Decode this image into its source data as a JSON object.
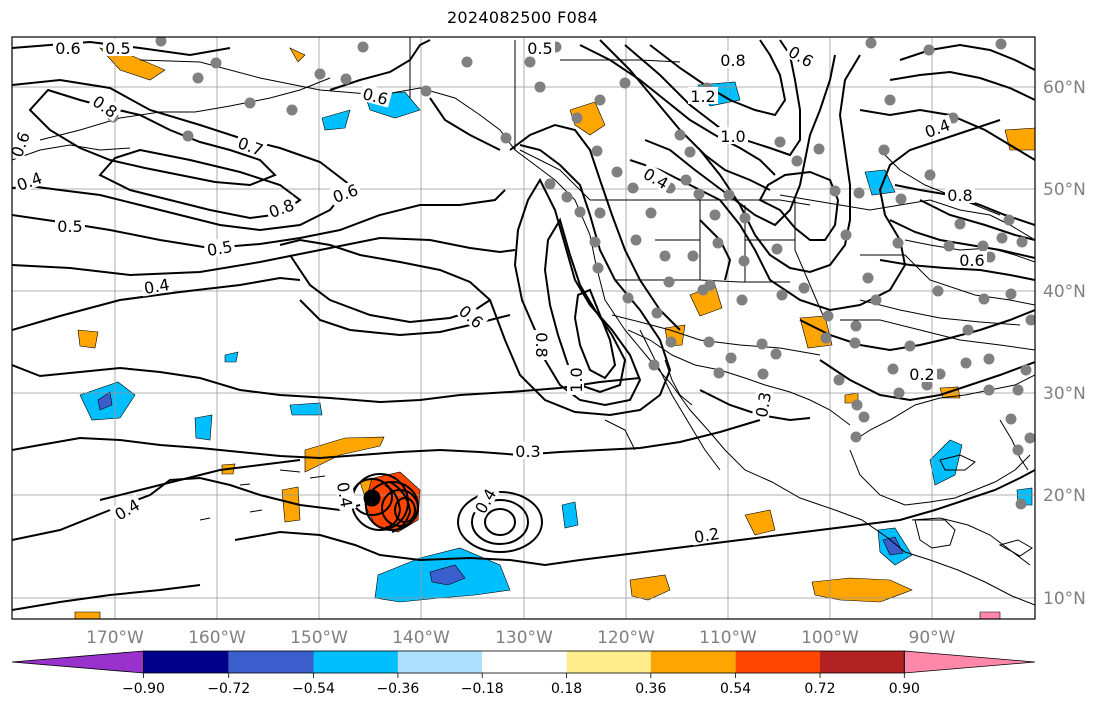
{
  "title": "2024082500 F084",
  "map": {
    "lon_labels": [
      "170°W",
      "160°W",
      "150°W",
      "140°W",
      "130°W",
      "120°W",
      "110°W",
      "100°W",
      "90°W"
    ],
    "lat_labels": [
      "60°N",
      "50°N",
      "40°N",
      "30°N",
      "20°N",
      "10°N"
    ],
    "contour_labels": [
      "0.6",
      "0.5",
      "0.5",
      "0.8",
      "0.6",
      "0.6",
      "0.7",
      "0.4",
      "0.5",
      "0.8",
      "0.6",
      "0.5",
      "0.4",
      "0.6",
      "0.8",
      "1.0",
      "0.3",
      "0.4",
      "0.4",
      "0.2",
      "0.4",
      "1.2",
      "1.0",
      "0.8",
      "0.6",
      "0.4",
      "0.8",
      "0.6",
      "0.4",
      "0.3",
      "0.2"
    ],
    "colors": {
      "land_outline": "#000000",
      "grid": "#999999",
      "station_dot": "#808080"
    }
  },
  "colorbar": {
    "ticks": [
      "−0.90",
      "−0.72",
      "−0.54",
      "−0.36",
      "−0.18",
      "0.18",
      "0.36",
      "0.54",
      "0.72",
      "0.90"
    ],
    "colors": [
      "#9932CC",
      "#00008B",
      "#3A5FCD",
      "#00BFFF",
      "#ADDFFF",
      "#FFFFFF",
      "#FFEC8B",
      "#FFA500",
      "#FF4500",
      "#B22222",
      "#FF88AA"
    ]
  }
}
